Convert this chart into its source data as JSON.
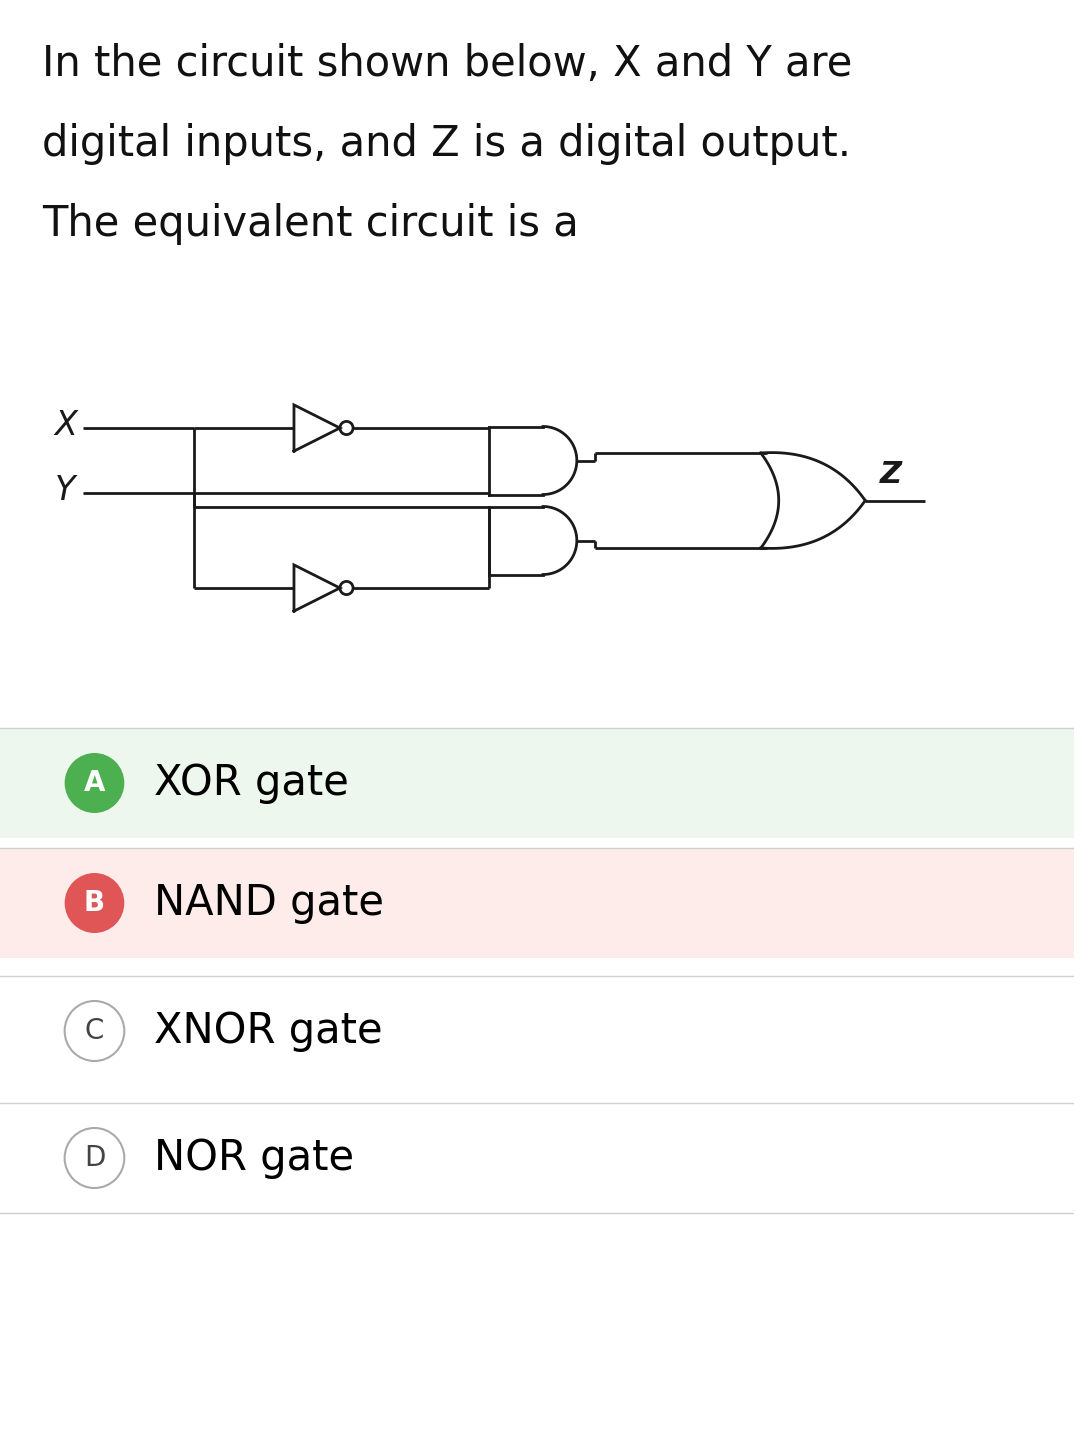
{
  "question_text_lines": [
    "In the circuit shown below, X and Y are",
    "digital inputs, and Z is a digital output.",
    "The equivalent circuit is a"
  ],
  "options": [
    {
      "label": "A",
      "text": "XOR gate",
      "circle_color": "#4CAF50",
      "text_color": "#000000",
      "bg_color": "#edf7ee",
      "has_bg": true
    },
    {
      "label": "B",
      "text": "NAND gate",
      "circle_color": "#e05555",
      "text_color": "#000000",
      "bg_color": "#fdecea",
      "has_bg": true
    },
    {
      "label": "C",
      "text": "XNOR gate",
      "circle_color": "#ffffff",
      "text_color": "#000000",
      "bg_color": "#ffffff",
      "has_bg": false
    },
    {
      "label": "D",
      "text": "NOR gate",
      "circle_color": "#ffffff",
      "text_color": "#000000",
      "bg_color": "#ffffff",
      "has_bg": false
    }
  ],
  "question_font_size": 30,
  "option_font_size": 30,
  "option_label_font_size": 20,
  "bg_color": "#ffffff",
  "text_color": "#111111"
}
